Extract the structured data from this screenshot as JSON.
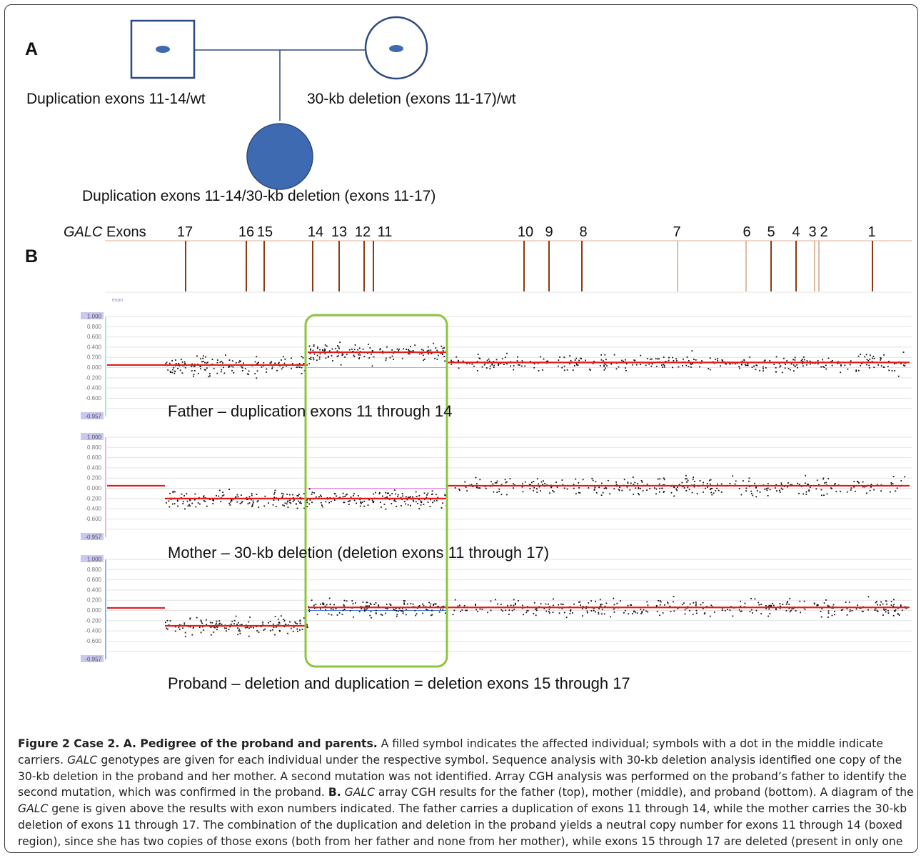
{
  "panel_a": {
    "label": "A",
    "father_genotype": "Duplication exons 11-14/wt",
    "mother_genotype": "30-kb deletion (exons 11-17)/wt",
    "proband_genotype": "Duplication exons 11-14/30-kb deletion (exons 11-17)"
  },
  "panel_b": {
    "label": "B",
    "gene_header_italic": "GALC",
    "gene_header_rest": " Exons",
    "exon_labels": [
      "17",
      "16",
      "15",
      "14",
      "13",
      "12",
      "11",
      "10",
      "9",
      "8",
      "7",
      "6",
      "5",
      "4",
      "3",
      "2",
      "1"
    ],
    "track_axis_text": "exon",
    "ytick_top": "1.000",
    "ytick_bottom": "-0.957",
    "yticks": [
      "0.800",
      "0.600",
      "0.400",
      "0.200",
      "0.000",
      "-0.200",
      "-0.400",
      "-0.600"
    ],
    "father_label": "Father – duplication exons 11 through 14",
    "mother_label": "Mother – 30-kb deletion (deletion exons 11 through 17)",
    "proband_label": "Proband – deletion and duplication = deletion exons 15 through 17"
  },
  "chart_data": [
    {
      "type": "scatter",
      "title": "Father – duplication exons 11 through 14",
      "ylim": [
        -0.957,
        1.0
      ],
      "segments": [
        {
          "region": "flank left of exon 17",
          "log2_ratio": 0.05
        },
        {
          "region": "exons 15-17",
          "log2_ratio": 0.05
        },
        {
          "region": "exons 11-14",
          "log2_ratio": 0.3
        },
        {
          "region": "exons 1-10",
          "log2_ratio": 0.1
        }
      ]
    },
    {
      "type": "scatter",
      "title": "Mother – 30-kb deletion (deletion exons 11 through 17)",
      "ylim": [
        -0.957,
        1.0
      ],
      "segments": [
        {
          "region": "flank left of exon 17",
          "log2_ratio": 0.05
        },
        {
          "region": "exons 15-17",
          "log2_ratio": -0.2
        },
        {
          "region": "exons 11-14",
          "log2_ratio": -0.2
        },
        {
          "region": "exons 1-10",
          "log2_ratio": 0.05
        }
      ]
    },
    {
      "type": "scatter",
      "title": "Proband – deletion and duplication = deletion exons 15 through 17",
      "ylim": [
        -0.957,
        1.0
      ],
      "segments": [
        {
          "region": "flank left of exon 17",
          "log2_ratio": 0.05
        },
        {
          "region": "exons 15-17",
          "log2_ratio": -0.3
        },
        {
          "region": "exons 11-14",
          "log2_ratio": 0.06
        },
        {
          "region": "exons 1-10",
          "log2_ratio": 0.06
        }
      ]
    }
  ],
  "caption": {
    "lead": "Figure 2 Case 2. A. Pedigree of the proband and parents.",
    "t1": " A filled symbol indicates the affected individual; symbols with a dot in the middle indicate carriers. ",
    "gene": "GALC",
    "t2": " genotypes are given for each individual under the respective symbol. Sequence analysis with 30-kb deletion analysis identified one copy of the 30-kb deletion in the proband and her mother. A second mutation was not identified. Array CGH analysis was performed on the proband’s father to identify the second mutation, which was confirmed in the proband. ",
    "b_label": "B.",
    "t3": " ",
    "t4": " array CGH results for the father (top), mother (middle), and proband (bottom). A diagram of the ",
    "t5": " gene is given above the results with exon numbers indicated. The father carries a duplication of exons 11 through 14, while the mother carries the 30-kb deletion of exons 11 through 17. The combination of the duplication and deletion in the proband yields a neutral copy number for exons 11 through 14 (boxed region), since she has two copies of those exons (both from her father and none from her mother), while exons 15 through 17 are deleted (present in only one copy from her father)."
  },
  "colors": {
    "pedigree_blue": "#3d6ab0",
    "pedigree_outline": "#2b4a80",
    "exon_line": "#8b3a0f",
    "exon_line_light": "#d2a587",
    "segment_red": "#e41a1a",
    "box_green": "#8cc63f",
    "father_axis": "#6fd3c0",
    "mother_axis": "#e57ae0",
    "proband_axis": "#3c7fd6",
    "tick_bg": "#c8c8f0"
  }
}
